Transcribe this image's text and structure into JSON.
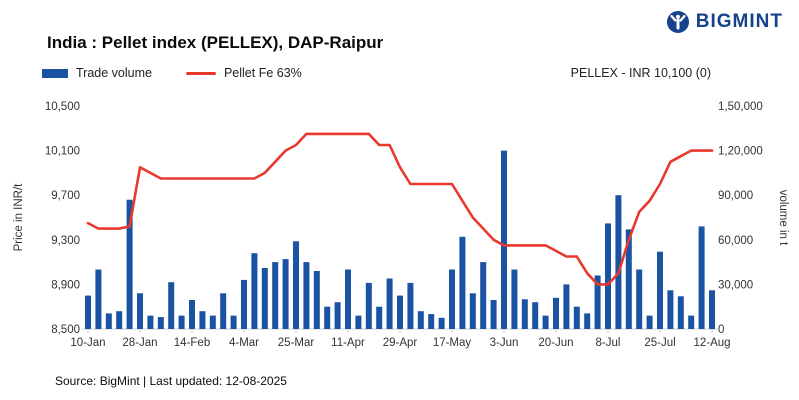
{
  "logo": {
    "text": "BIGMINT"
  },
  "header": {
    "title": "India : Pellet index (PELLEX), DAP-Raipur"
  },
  "legend": {
    "trade_volume": "Trade volume",
    "pellet": "Pellet Fe 63%",
    "pellex_label": "PELLEX - INR 10,100 (0)"
  },
  "axes": {
    "left_title": "Price in INR/t",
    "right_title": "volume in t",
    "left_ticks": [
      "8,500",
      "8,900",
      "9,300",
      "9,700",
      "10,100",
      "10,500"
    ],
    "right_ticks": [
      "0",
      "30,000",
      "60,000",
      "90,000",
      "1,20,000",
      "1,50,000"
    ],
    "x_ticks": [
      "10-Jan",
      "28-Jan",
      "14-Feb",
      "4-Mar",
      "25-Mar",
      "11-Apr",
      "29-Apr",
      "17-May",
      "3-Jun",
      "20-Jun",
      "8-Jul",
      "25-Jul",
      "12-Aug"
    ]
  },
  "footer": {
    "source": "Source: BigMint | Last updated: 12-08-2025"
  },
  "colors": {
    "bar": "#1a53a1",
    "line": "#e8392f",
    "logo": "#16418c",
    "axis_text": "#333333",
    "axis_line": "#cccccc"
  },
  "chart_data": {
    "type": "combo",
    "title": "India : Pellet index (PELLEX), DAP-Raipur",
    "last_value_label": "PELLEX - INR 10,100 (0)",
    "x_tick_labels": [
      "10-Jan",
      "28-Jan",
      "14-Feb",
      "4-Mar",
      "25-Mar",
      "11-Apr",
      "29-Apr",
      "17-May",
      "3-Jun",
      "20-Jun",
      "8-Jul",
      "25-Jul",
      "12-Aug"
    ],
    "x_tick_positions": [
      0,
      5,
      10,
      15,
      20,
      25,
      30,
      35,
      40,
      45,
      50,
      55,
      60
    ],
    "left_axis": {
      "label": "Price in INR/t",
      "min": 8500,
      "max": 10500,
      "tick_step": 400
    },
    "right_axis": {
      "label": "volume in t",
      "min": 0,
      "max": 150000,
      "tick_step": 30000
    },
    "series": [
      {
        "name": "Trade volume",
        "type": "bar",
        "axis": "right",
        "values": [
          22500,
          40000,
          10500,
          12000,
          87000,
          24000,
          9000,
          8000,
          31500,
          9000,
          19500,
          12000,
          9000,
          24000,
          9000,
          33000,
          51000,
          41000,
          45000,
          47000,
          59000,
          45000,
          39000,
          15000,
          18000,
          40000,
          9000,
          31000,
          15000,
          34000,
          22500,
          31000,
          12000,
          10000,
          7500,
          40000,
          62000,
          24000,
          45000,
          19500,
          120000,
          40000,
          20000,
          18000,
          9000,
          21000,
          30000,
          15000,
          10500,
          36000,
          71000,
          90000,
          67000,
          40000,
          9000,
          52000,
          26000,
          22000,
          9000,
          69000,
          26000
        ]
      },
      {
        "name": "Pellet Fe 63%",
        "type": "line",
        "axis": "left",
        "values": [
          9450,
          9400,
          9400,
          9400,
          9420,
          9950,
          9900,
          9850,
          9850,
          9850,
          9850,
          9850,
          9850,
          9850,
          9850,
          9850,
          9850,
          9900,
          10000,
          10100,
          10150,
          10250,
          10250,
          10250,
          10250,
          10250,
          10250,
          10250,
          10150,
          10150,
          9950,
          9800,
          9800,
          9800,
          9800,
          9800,
          9650,
          9500,
          9400,
          9300,
          9250,
          9250,
          9250,
          9250,
          9250,
          9200,
          9150,
          9150,
          9000,
          8900,
          8900,
          9000,
          9300,
          9550,
          9650,
          9800,
          10000,
          10050,
          10100,
          10100,
          10100
        ]
      }
    ]
  }
}
